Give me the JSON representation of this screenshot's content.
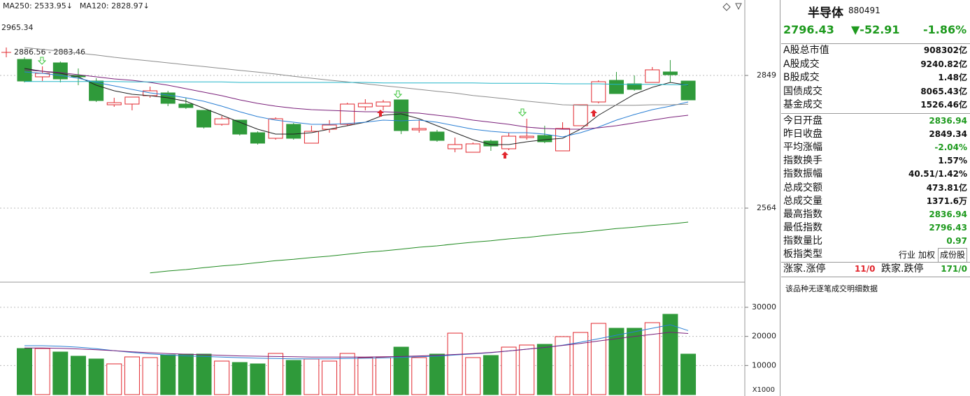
{
  "chart_data": [
    {
      "type": "candlestick",
      "max_label": "2965.34",
      "range_label": "2886.56 - 2883.46",
      "up_color": "#e2272e",
      "down_color": "#2f9a3a",
      "ylim": [
        2411,
        2981
      ],
      "yticks": [
        2564,
        2849
      ],
      "grid": true,
      "open": [
        2883.5,
        2846,
        2876,
        2849,
        2837,
        2786,
        2787.5,
        2805.5,
        2811.5,
        2787.5,
        2774,
        2744,
        2753,
        2726,
        2714,
        2744,
        2703.5,
        2733.5,
        2744,
        2781.5,
        2783,
        2796.5,
        2732,
        2727.5,
        2691.5,
        2684,
        2708,
        2691.5,
        2715.5,
        2720,
        2687,
        2741,
        2792,
        2838.5,
        2831,
        2834,
        2856.5,
        2836.94
      ],
      "high": [
        2888,
        2868.5,
        2879,
        2864,
        2843,
        2801,
        2802.5,
        2825,
        2816,
        2801,
        2774,
        2762,
        2753,
        2729,
        2759,
        2747,
        2741,
        2753,
        2790.5,
        2798,
        2796.5,
        2796.5,
        2753,
        2732,
        2715.5,
        2705,
        2711,
        2726,
        2756,
        2741,
        2748.5,
        2786,
        2838.5,
        2856.5,
        2849,
        2867,
        2882,
        2836.94
      ],
      "low": [
        2834,
        2837,
        2834,
        2828,
        2792,
        2781.5,
        2774,
        2801,
        2783,
        2777,
        2735,
        2741,
        2720,
        2700.5,
        2711,
        2711,
        2703.5,
        2726,
        2741,
        2774,
        2774,
        2723,
        2726,
        2706.5,
        2684,
        2684,
        2687,
        2688.5,
        2711,
        2703.5,
        2687,
        2741,
        2789,
        2810,
        2816,
        2834,
        2834,
        2796.43
      ],
      "close": [
        2837,
        2853.5,
        2841.5,
        2846,
        2795,
        2790.5,
        2802.5,
        2816,
        2789,
        2780,
        2738,
        2756,
        2723,
        2703.5,
        2756,
        2714,
        2729,
        2742.5,
        2787.5,
        2789,
        2792,
        2730.5,
        2735,
        2709.5,
        2700.5,
        2702,
        2697.5,
        2718.5,
        2718.5,
        2706.5,
        2735,
        2786,
        2835.5,
        2810,
        2819,
        2861,
        2850.5,
        2796.43
      ],
      "series": [
        {
          "color": "#222222",
          "values": [
            2864,
            2858,
            2853.5,
            2846,
            2828,
            2816,
            2808.5,
            2805.5,
            2801,
            2793.5,
            2778.5,
            2763.5,
            2748.5,
            2733.5,
            2723,
            2723,
            2726,
            2733.5,
            2741,
            2748.5,
            2763.5,
            2766.5,
            2756,
            2741,
            2726,
            2711,
            2700.5,
            2700.5,
            2706.5,
            2711,
            2714,
            2733.5,
            2763.5,
            2786,
            2808.5,
            2823.5,
            2834,
            2828
          ]
        },
        {
          "color": "#2a7fd4",
          "values": [
            2856.5,
            2853.5,
            2849,
            2843,
            2834,
            2826.5,
            2819,
            2811.5,
            2807,
            2801,
            2793.5,
            2783,
            2771,
            2760.5,
            2753,
            2748.5,
            2744,
            2744,
            2745.5,
            2748.5,
            2753,
            2751.5,
            2753,
            2748.5,
            2741,
            2733.5,
            2729,
            2726,
            2726,
            2723,
            2717,
            2726,
            2738,
            2753,
            2765,
            2775.5,
            2783,
            2792
          ]
        },
        {
          "color": "#7a1f7a",
          "values": [
            2861,
            2858,
            2855,
            2850.5,
            2846,
            2841.5,
            2838.5,
            2834,
            2828,
            2820.5,
            2813,
            2805.5,
            2796.5,
            2789,
            2783,
            2778.5,
            2775.5,
            2774,
            2772.5,
            2771,
            2771,
            2769.5,
            2768,
            2763.5,
            2759,
            2753,
            2748.5,
            2744,
            2738,
            2735,
            2733.5,
            2733.5,
            2736.5,
            2741,
            2747,
            2753,
            2759,
            2763.5
          ]
        },
        {
          "color": "#8c8c8c",
          "values": [
            2909,
            2905,
            2901,
            2897,
            2893,
            2888,
            2884,
            2880,
            2876,
            2872,
            2868,
            2864,
            2860,
            2856,
            2852,
            2847,
            2843,
            2839,
            2835,
            2831,
            2827,
            2823,
            2819,
            2815,
            2811,
            2806,
            2802,
            2798,
            2794,
            2790,
            2786,
            2785,
            2785,
            2785,
            2785,
            2786,
            2786,
            2787
          ]
        },
        {
          "name": "MA120: 2828.97↓",
          "color": "#22b5c8",
          "values": [
            2836,
            2836,
            2836,
            2836,
            2836,
            2836,
            2835,
            2835,
            2835,
            2835,
            2835,
            2835,
            2834,
            2834,
            2834,
            2834,
            2834,
            2834,
            2834,
            2834,
            2833,
            2833,
            2833,
            2833,
            2833,
            2833,
            2832,
            2832,
            2832,
            2832,
            2831,
            2831,
            2831,
            2830,
            2830,
            2830,
            2829,
            2828.97
          ]
        },
        {
          "name": "MA250: 2533.95↓",
          "color": "#1f8a1f",
          "values": [
            null,
            null,
            null,
            null,
            null,
            null,
            null,
            2425,
            2429,
            2432,
            2436,
            2440,
            2443,
            2447,
            2451,
            2454,
            2458,
            2461,
            2465,
            2469,
            2472,
            2476,
            2480,
            2483,
            2487,
            2491,
            2494,
            2498,
            2501,
            2505,
            2509,
            2512,
            2516,
            2520,
            2523,
            2527,
            2530,
            2533.95
          ]
        }
      ]
    },
    {
      "type": "bar",
      "unit_label": "X1000",
      "ylim": [
        0,
        34800
      ],
      "yticks": [
        10000,
        20000,
        30000
      ],
      "grid": true,
      "values": [
        15840,
        15840,
        14640,
        13200,
        12240,
        10560,
        12960,
        12720,
        13680,
        13920,
        13920,
        11520,
        11040,
        10560,
        14160,
        11760,
        12240,
        11520,
        14160,
        12720,
        12720,
        16320,
        12720,
        13920,
        21120,
        12720,
        13440,
        16320,
        17040,
        17280,
        19920,
        21360,
        24480,
        22800,
        22800,
        24720,
        27600,
        13920
      ],
      "series": [
        {
          "color": "#2a7fd4",
          "values": [
            16800,
            16800,
            16600,
            16300,
            15800,
            15100,
            14500,
            14000,
            13600,
            13300,
            13100,
            12900,
            12700,
            12500,
            12400,
            12300,
            12300,
            12300,
            12400,
            12500,
            12600,
            12800,
            13000,
            13200,
            13600,
            14000,
            14400,
            15000,
            15600,
            16200,
            17000,
            18000,
            19200,
            20400,
            21600,
            22800,
            24000,
            22000
          ]
        },
        {
          "color": "#7a1f7a",
          "values": [
            16000,
            16000,
            15900,
            15700,
            15400,
            15100,
            14700,
            14400,
            14100,
            13900,
            13700,
            13500,
            13300,
            13200,
            13100,
            13000,
            12900,
            12900,
            12900,
            12900,
            13000,
            13100,
            13300,
            13500,
            13800,
            14100,
            14500,
            15000,
            15600,
            16200,
            16900,
            17600,
            18400,
            19200,
            20000,
            20700,
            21400,
            21000
          ]
        }
      ]
    }
  ],
  "side": {
    "title": "半导体",
    "code": "880491",
    "price": "2796.43",
    "change": "▼-52.91",
    "percent": "-1.86%",
    "quote_color": "#1e9a1e",
    "market_rows": [
      {
        "label": "A股总市值",
        "value": "908302亿",
        "color": "#111111"
      },
      {
        "label": "A股成交",
        "value": "9240.82亿",
        "color": "#111111"
      },
      {
        "label": "B股成交",
        "value": "1.48亿",
        "color": "#111111"
      },
      {
        "label": "国债成交",
        "value": "8065.43亿",
        "color": "#111111"
      },
      {
        "label": "基金成交",
        "value": "1526.46亿",
        "color": "#111111"
      }
    ],
    "index_rows": [
      {
        "label": "今日开盘",
        "value": "2836.94",
        "color": "#1e9a1e"
      },
      {
        "label": "昨日收盘",
        "value": "2849.34",
        "color": "#111111"
      },
      {
        "label": "平均涨幅",
        "value": "-2.04%",
        "color": "#1e9a1e"
      },
      {
        "label": "指数换手",
        "value": "1.57%",
        "color": "#111111"
      },
      {
        "label": "指数振幅",
        "value": "40.51/1.42%",
        "color": "#111111"
      },
      {
        "label": "总成交额",
        "value": "473.81亿",
        "color": "#111111"
      },
      {
        "label": "总成交量",
        "value": "1371.6万",
        "color": "#111111"
      },
      {
        "label": "最高指数",
        "value": "2836.94",
        "color": "#1e9a1e"
      },
      {
        "label": "最低指数",
        "value": "2796.43",
        "color": "#1e9a1e"
      },
      {
        "label": "指数量比",
        "value": "0.97",
        "color": "#1e9a1e"
      }
    ],
    "type_row": {
      "label": "板指类型",
      "options": [
        "行业",
        "加权",
        "成份股"
      ]
    },
    "breadth": {
      "up_label": "涨家.涨停",
      "up_value": "11/0",
      "up_color": "#e2272e",
      "down_label": "跌家.跌停",
      "down_value": "171/0",
      "down_color": "#1e9a1e"
    },
    "note": "该品种无逐笔成交明细数据"
  }
}
